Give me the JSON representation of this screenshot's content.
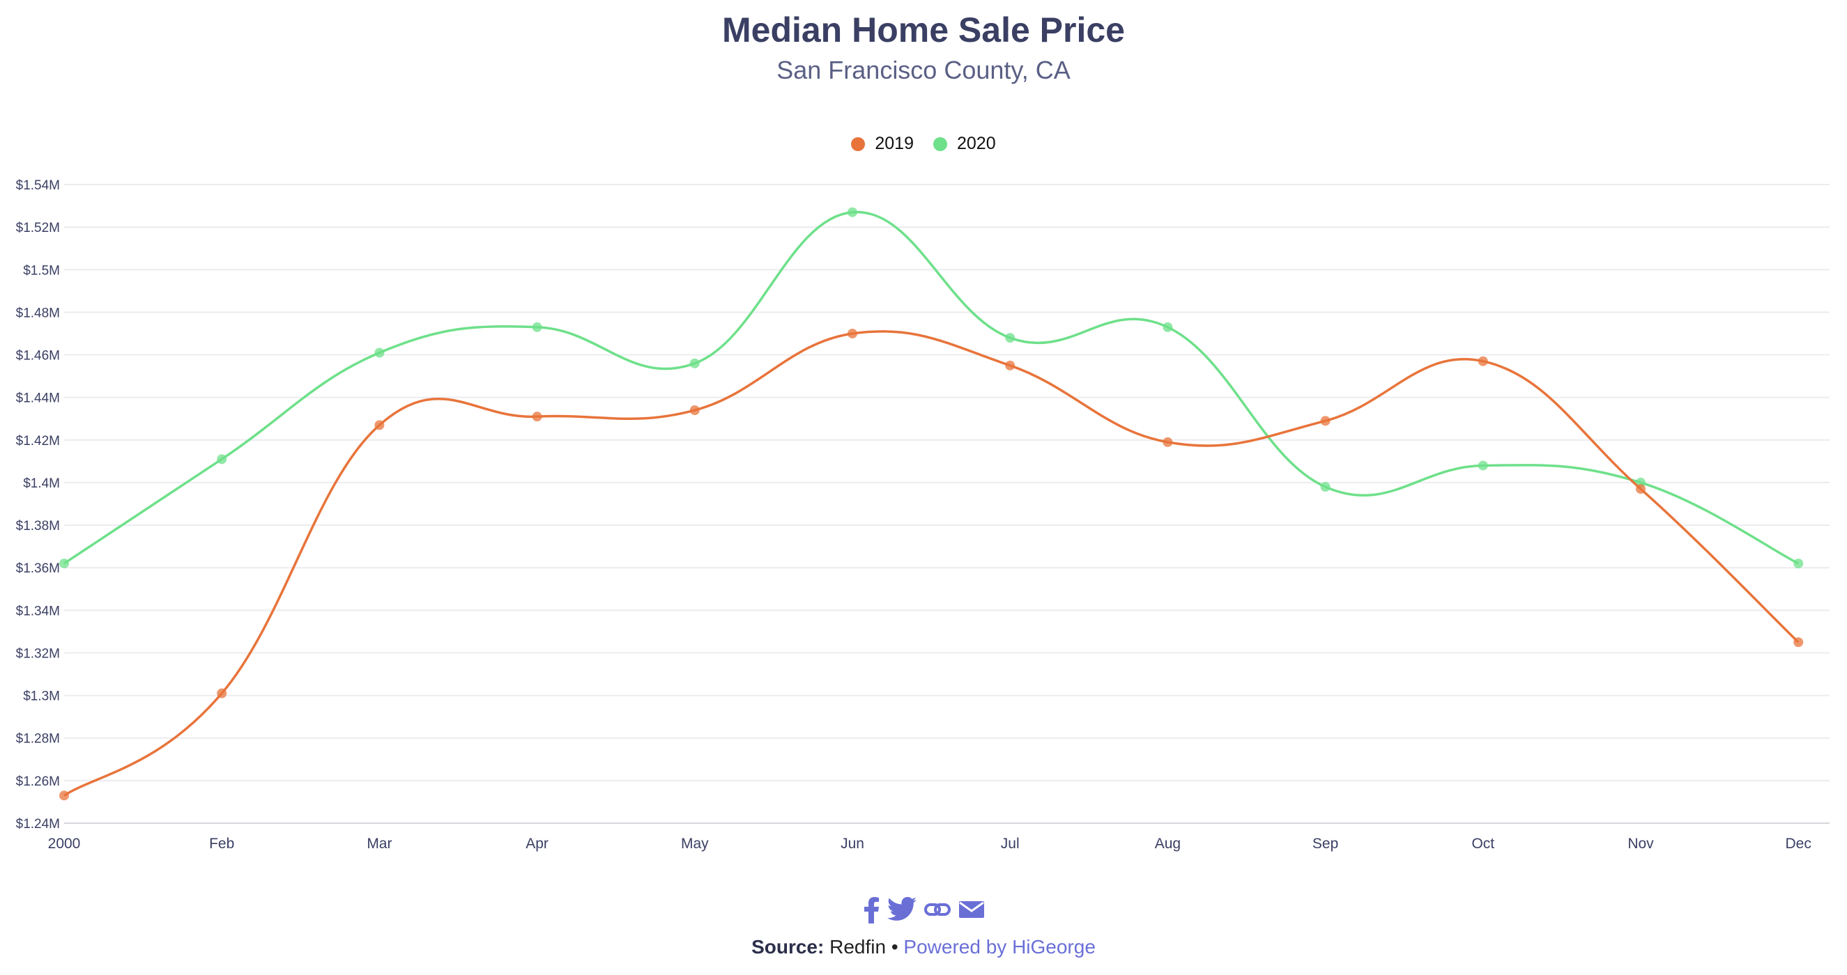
{
  "colors": {
    "series_2019": "#e8743b",
    "series_2020": "#6ee08a",
    "title": "#3a3f63",
    "accent": "#6a6fd6"
  },
  "chart_data": {
    "type": "line",
    "title": "Median Home Sale Price",
    "subtitle": "San Francisco County, CA",
    "x": [
      "2000",
      "Feb",
      "Mar",
      "Apr",
      "May",
      "Jun",
      "Jul",
      "Aug",
      "Sep",
      "Oct",
      "Nov",
      "Dec"
    ],
    "yticks": [
      "$1.24M",
      "$1.26M",
      "$1.28M",
      "$1.3M",
      "$1.32M",
      "$1.34M",
      "$1.36M",
      "$1.38M",
      "$1.4M",
      "$1.42M",
      "$1.44M",
      "$1.46M",
      "$1.48M",
      "$1.5M",
      "$1.52M",
      "$1.54M"
    ],
    "ylim": [
      1240000,
      1540000
    ],
    "grid": true,
    "legend_position": "top-center",
    "series": [
      {
        "name": "2019",
        "values": [
          1253000,
          1301000,
          1427000,
          1431000,
          1434000,
          1470000,
          1455000,
          1419000,
          1429000,
          1457000,
          1397000,
          1325000
        ]
      },
      {
        "name": "2020",
        "values": [
          1362000,
          1411000,
          1461000,
          1473000,
          1456000,
          1527000,
          1468000,
          1473000,
          1398000,
          1408000,
          1400000,
          1362000
        ]
      }
    ]
  },
  "share_icons": [
    "facebook-icon",
    "twitter-icon",
    "link-icon",
    "email-icon"
  ],
  "footer": {
    "source_label": "Source:",
    "source_value": "Redfin",
    "separator": "•",
    "powered_by": "Powered by HiGeorge"
  }
}
